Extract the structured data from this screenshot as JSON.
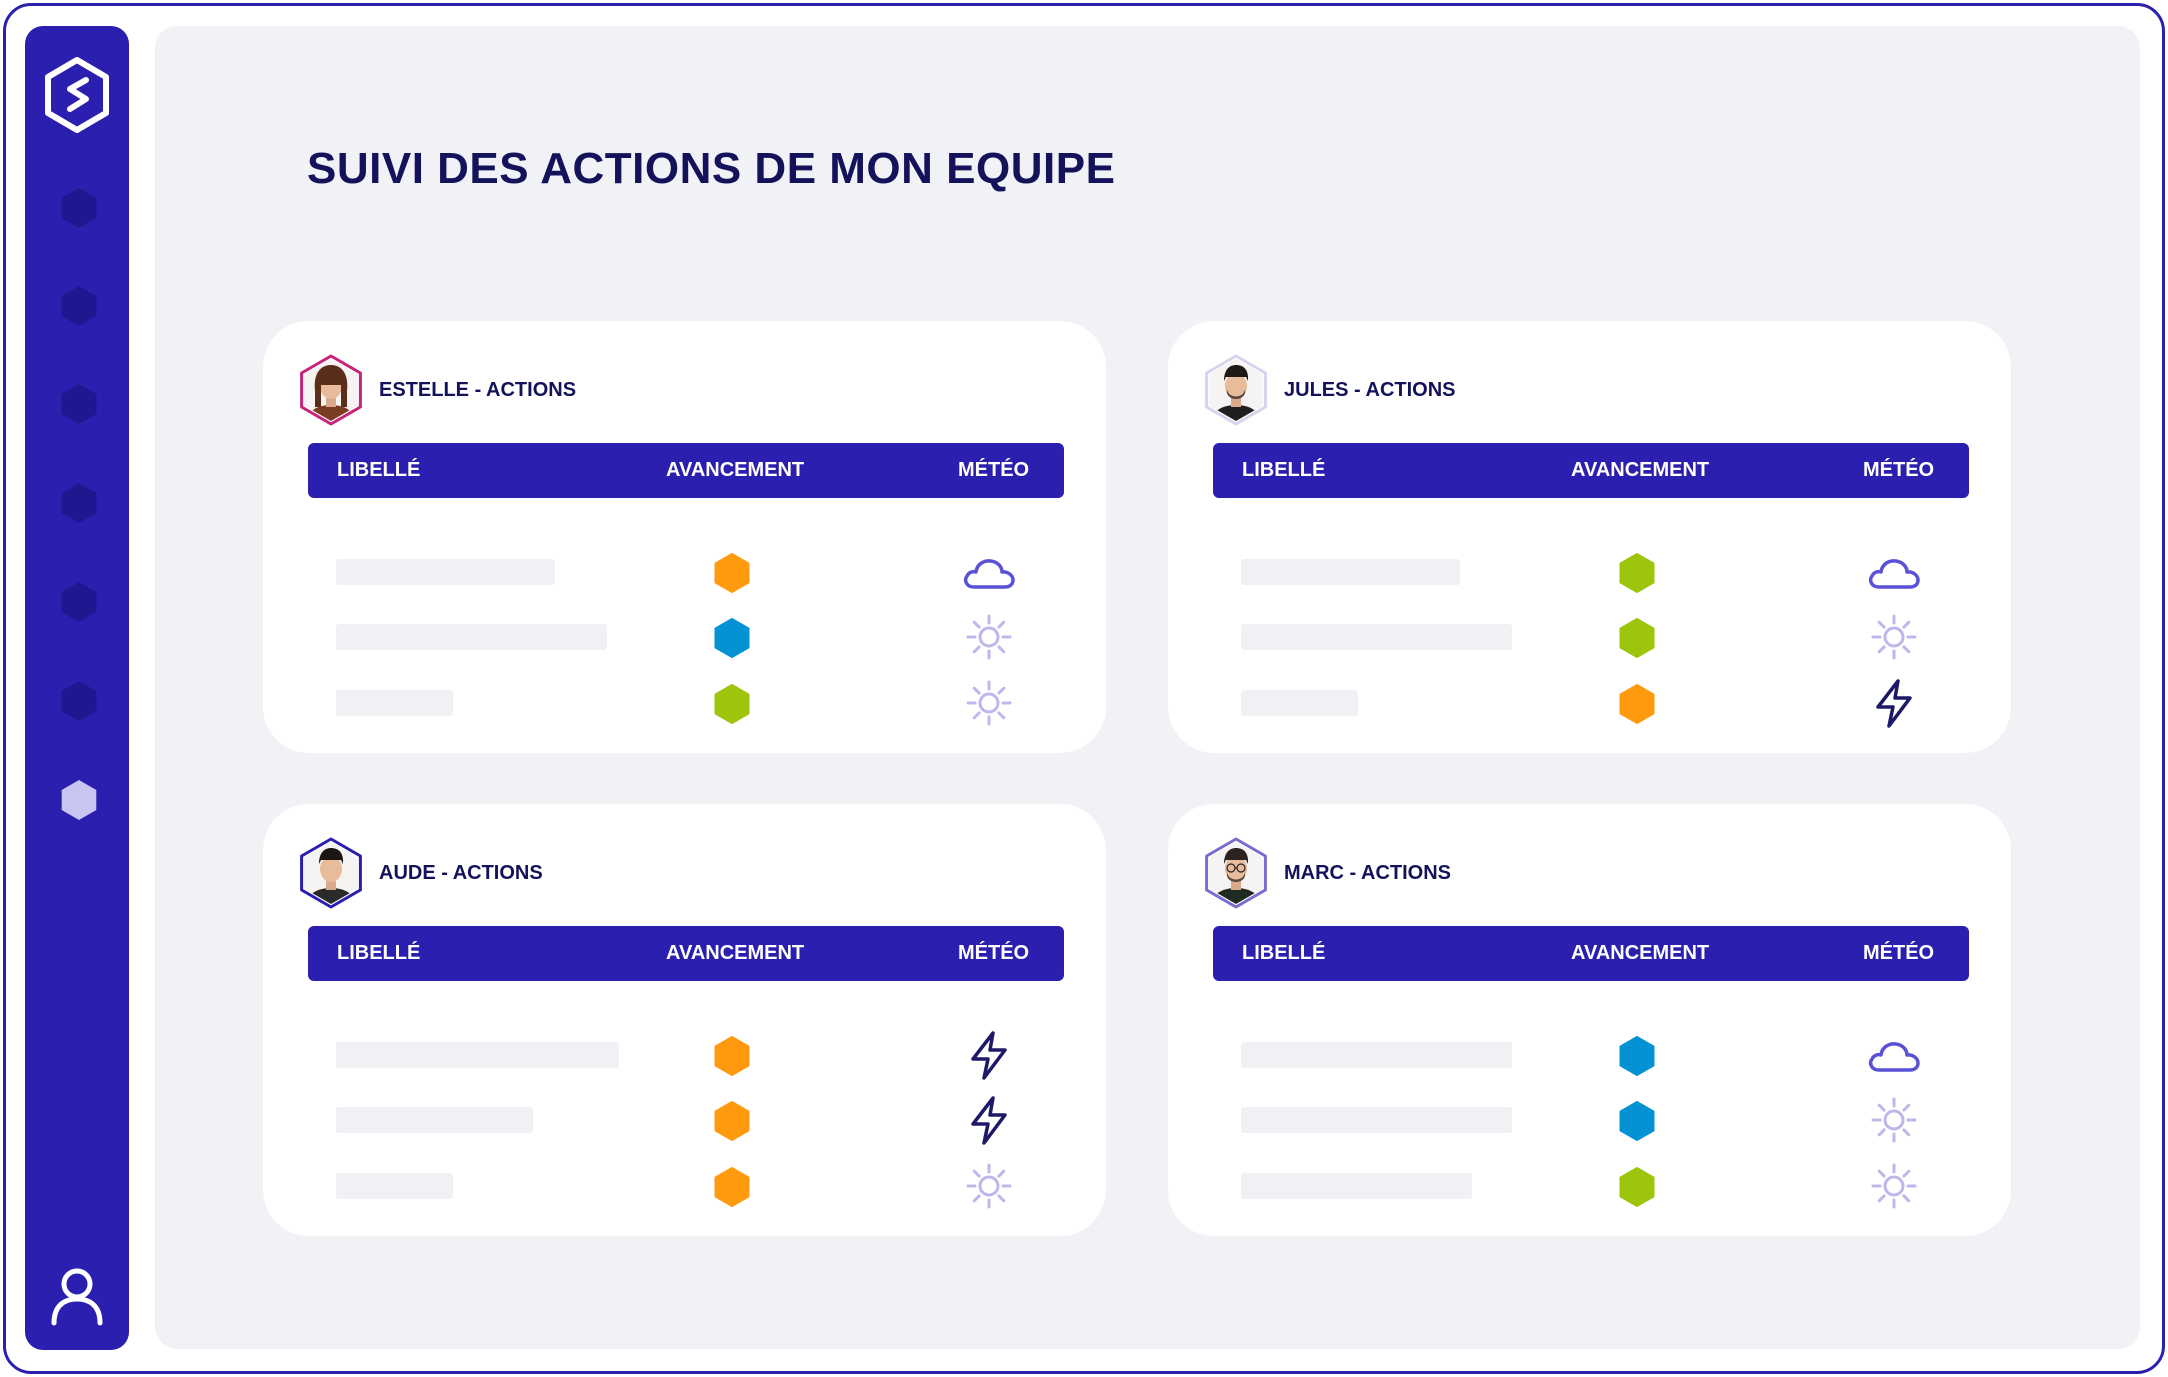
{
  "page": {
    "title": "SUIVI DES ACTIONS DE MON EQUIPE"
  },
  "colors": {
    "brand": "#2a1fae",
    "status_orange": "#ff9a0f",
    "status_blue": "#0393d4",
    "status_green": "#9dc50c"
  },
  "sidebar": {
    "logo": "s-hexagon-logo",
    "items": [
      {
        "icon": "hexagon-icon",
        "active": false
      },
      {
        "icon": "hexagon-icon",
        "active": false
      },
      {
        "icon": "hexagon-icon",
        "active": false
      },
      {
        "icon": "hexagon-icon",
        "active": false
      },
      {
        "icon": "hexagon-icon",
        "active": false
      },
      {
        "icon": "hexagon-icon",
        "active": false
      },
      {
        "icon": "hexagon-icon",
        "active": true
      }
    ],
    "user_icon": "user-icon"
  },
  "columns": {
    "libelle": "LIBELLÉ",
    "avancement": "AVANCEMENT",
    "meteo": "MÉTÉO"
  },
  "cards": [
    {
      "title": "ESTELLE - ACTIONS",
      "avatar_border": "#c8237a",
      "rows": [
        {
          "status": "orange",
          "weather": "cloud"
        },
        {
          "status": "blue",
          "weather": "sun"
        },
        {
          "status": "green",
          "weather": "sun"
        }
      ]
    },
    {
      "title": "JULES - ACTIONS",
      "avatar_border": "#d6d4ee",
      "rows": [
        {
          "status": "green",
          "weather": "cloud"
        },
        {
          "status": "green",
          "weather": "sun"
        },
        {
          "status": "orange",
          "weather": "lightning"
        }
      ]
    },
    {
      "title": "AUDE - ACTIONS",
      "avatar_border": "#2a1fae",
      "rows": [
        {
          "status": "orange",
          "weather": "lightning"
        },
        {
          "status": "orange",
          "weather": "lightning"
        },
        {
          "status": "orange",
          "weather": "sun"
        }
      ]
    },
    {
      "title": "MARC - ACTIONS",
      "avatar_border": "#7b6cd0",
      "rows": [
        {
          "status": "blue",
          "weather": "cloud"
        },
        {
          "status": "blue",
          "weather": "sun"
        },
        {
          "status": "green",
          "weather": "sun"
        }
      ]
    }
  ]
}
